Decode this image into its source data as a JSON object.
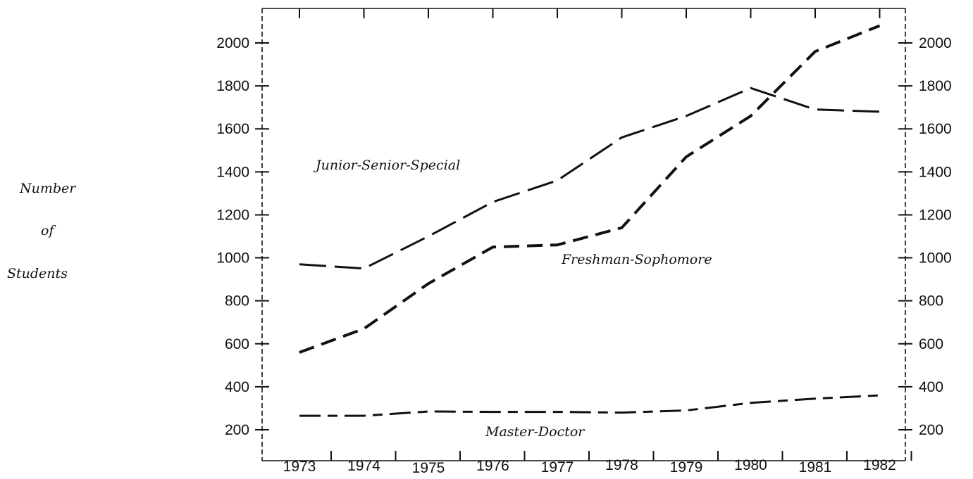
{
  "chart_data": {
    "type": "line",
    "title": "",
    "xlabel": "",
    "ylabel_lines": [
      "Number",
      "of",
      "Students"
    ],
    "categories": [
      "1973",
      "1974",
      "1975",
      "1976",
      "1977",
      "1978",
      "1979",
      "1980",
      "1981",
      "1982"
    ],
    "yticks": [
      "200",
      "400",
      "600",
      "800",
      "1000",
      "1200",
      "1400",
      "1600",
      "1800",
      "2000"
    ],
    "ylim": [
      100,
      2000
    ],
    "grid": false,
    "series": [
      {
        "name": "Junior-Senior-Special",
        "values": [
          970,
          950,
          1100,
          1260,
          1360,
          1560,
          1660,
          1790,
          1690,
          1680
        ],
        "dash": "long"
      },
      {
        "name": "Freshman-Sophomore",
        "values": [
          560,
          670,
          880,
          1050,
          1060,
          1140,
          1470,
          1660,
          1960,
          2080
        ],
        "dash": "medium"
      },
      {
        "name": "Master-Doctor",
        "values": [
          265,
          265,
          285,
          283,
          283,
          280,
          290,
          325,
          345,
          360
        ],
        "dash": "dashdot"
      }
    ]
  }
}
